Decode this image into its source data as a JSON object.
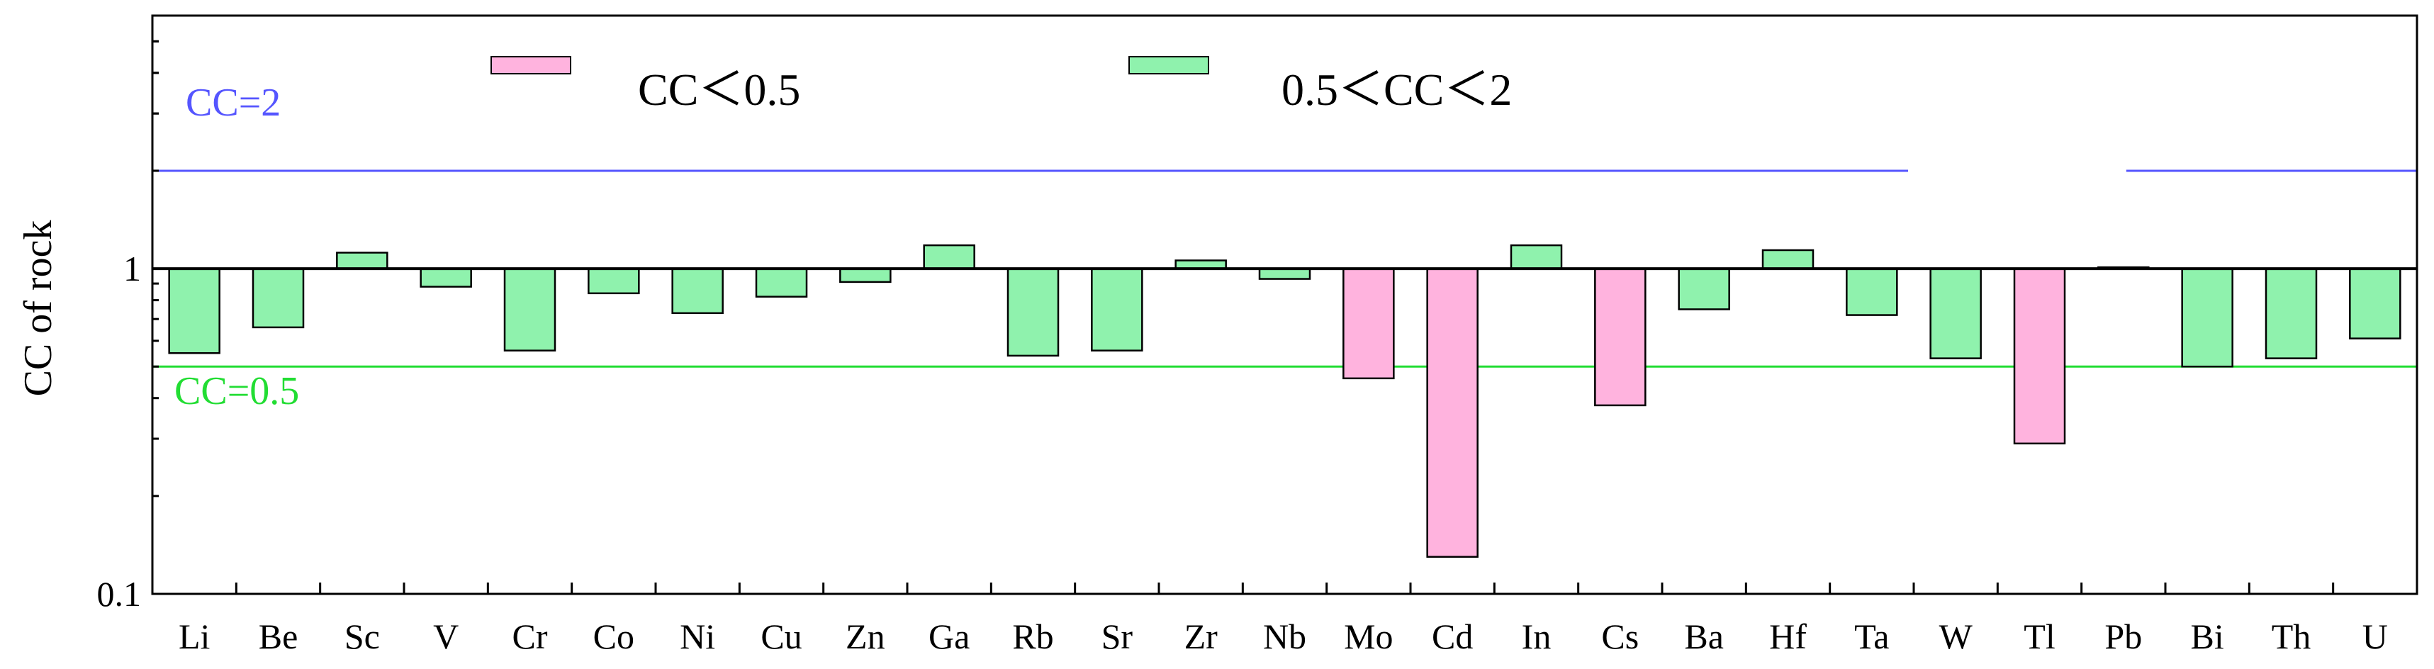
{
  "chart_data": {
    "type": "bar",
    "categories": [
      "Li",
      "Be",
      "Sc",
      "V",
      "Cr",
      "Co",
      "Ni",
      "Cu",
      "Zn",
      "Ga",
      "Rb",
      "Sr",
      "Zr",
      "Nb",
      "Mo",
      "Cd",
      "In",
      "Cs",
      "Ba",
      "Hf",
      "Ta",
      "W",
      "Tl",
      "Pb",
      "Bi",
      "Th",
      "U"
    ],
    "values": [
      0.55,
      0.66,
      1.12,
      0.88,
      0.56,
      0.84,
      0.73,
      0.82,
      0.91,
      1.18,
      0.54,
      0.56,
      1.06,
      0.93,
      0.46,
      0.13,
      1.18,
      0.38,
      0.75,
      1.14,
      0.72,
      0.53,
      0.29,
      1.01,
      0.5,
      0.53,
      0.61
    ],
    "baseline": 1,
    "ylabel": "CC of rock",
    "xlabel": "",
    "yscale": "log",
    "ylim": [
      0.1,
      6
    ],
    "yticks": [
      0.1,
      1
    ],
    "ytick_labels": [
      "0.1",
      "1"
    ],
    "classes": [
      {
        "name": "CC<0.5",
        "color": "#ffb3de"
      },
      {
        "name": "0.5<CC<2",
        "color": "#8ff2ad"
      }
    ],
    "reference_lines": [
      {
        "label": "CC=2",
        "value": 2,
        "color": "#5555ff"
      },
      {
        "label": "CC=0.5",
        "value": 0.5,
        "color": "#22dd33"
      }
    ],
    "legend": {
      "placement": "top",
      "entries": [
        {
          "label": "CC＜0.5",
          "color": "#ffb3de"
        },
        {
          "label": "0.5＜CC＜2",
          "color": "#8ff2ad"
        }
      ]
    },
    "grid": false
  }
}
